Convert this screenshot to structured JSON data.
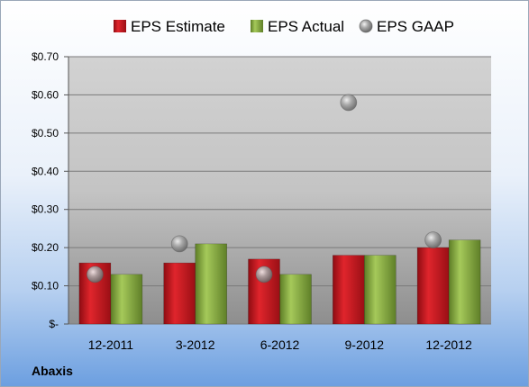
{
  "chart_data": {
    "type": "bar",
    "categories": [
      "12-2011",
      "3-2012",
      "6-2012",
      "9-2012",
      "12-2012"
    ],
    "series": [
      {
        "name": "EPS Estimate",
        "values": [
          0.16,
          0.16,
          0.17,
          0.18,
          0.2
        ],
        "color": "#c0141c"
      },
      {
        "name": "EPS Actual",
        "values": [
          0.13,
          0.21,
          0.13,
          0.18,
          0.22
        ],
        "color": "#7ea23a"
      },
      {
        "name": "EPS GAAP",
        "type": "scatter",
        "values": [
          0.13,
          0.21,
          0.13,
          0.58,
          0.22
        ],
        "color": "#9c9c9c"
      }
    ],
    "ylim": [
      0,
      0.7
    ],
    "yticks": [
      {
        "value": 0.7,
        "label": "$0.70"
      },
      {
        "value": 0.6,
        "label": "$0.60"
      },
      {
        "value": 0.5,
        "label": "$0.50"
      },
      {
        "value": 0.4,
        "label": "$0.40"
      },
      {
        "value": 0.3,
        "label": "$0.30"
      },
      {
        "value": 0.2,
        "label": "$0.20"
      },
      {
        "value": 0.1,
        "label": "$0.10"
      },
      {
        "value": 0,
        "label": "$-"
      }
    ],
    "grid": true,
    "legend_position": "top"
  },
  "company": "Abaxis"
}
